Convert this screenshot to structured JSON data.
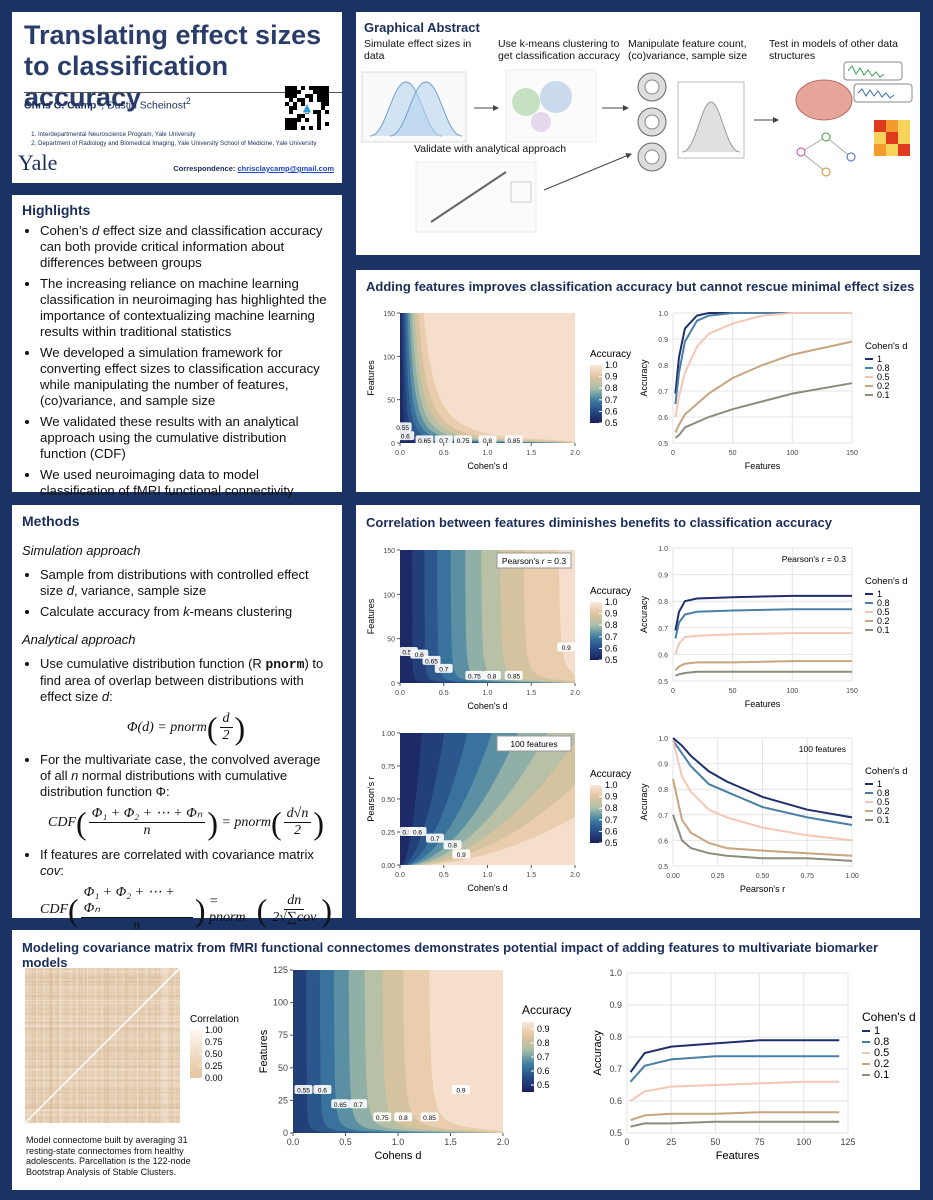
{
  "header": {
    "title": "Translating effect sizes to classification accuracy",
    "author1": "Chris C. Camp",
    "sup1": "1",
    "author2": ", Dustin Scheinost",
    "sup2": "2",
    "affiliations": [
      "Interdepartmental Neuroscience Program, Yale University",
      "Department of Radiology and Biomedical Imaging, Yale University School of Medicine, Yale University"
    ],
    "institution": "Yale",
    "correspondence_label": "Correspondence:",
    "email": "chrisclaycamp@gmail.com"
  },
  "highlights": {
    "title": "Highlights",
    "items": [
      [
        "Cohen’s ",
        "d",
        " effect size and classification accuracy can both provide critical information about differences between groups"
      ],
      [
        "The increasing reliance on machine learning classification in neuroimaging has highlighted the importance of contextualizing machine learning results within traditional statistics"
      ],
      [
        "We developed a simulation framework for converting effect sizes to classification accuracy while manipulating the number of features, (co)variance, and sample size"
      ],
      [
        "We validated these results with an analytical approach using the cumulative distribution function (CDF)"
      ],
      [
        "We used neuroimaging data to model classification of fMRI functional connectivity"
      ]
    ]
  },
  "methods": {
    "title": "Methods",
    "simulation_heading": "Simulation approach",
    "simulation_items": [
      [
        "Sample from distributions with controlled effect size ",
        "d",
        ", variance, sample size"
      ],
      [
        "Calculate accuracy from ",
        "k",
        "-means clustering"
      ]
    ],
    "analytical_heading": "Analytical approach",
    "analytical_items": [
      [
        "Use cumulative distribution function (R ",
        "pnorm",
        ") to find area of overlap between distributions with effect size ",
        "d",
        ":"
      ],
      [
        "For the multivariate case, the convolved average of all ",
        "n",
        " normal distributions with cumulative distribution function Φ:"
      ],
      [
        "If features are correlated with covariance matrix ",
        "cov",
        ":"
      ]
    ],
    "formula1": {
      "lhs": "Φ(d) = pnorm",
      "num": "d",
      "den": "2"
    },
    "formula2": {
      "lhs": "CDF",
      "num1": "Φ₁ + Φ₂ + ⋯ + Φₙ",
      "den1": "n",
      "mid": "= pnorm",
      "num2": "d√n",
      "den2": "2"
    },
    "formula3": {
      "lhs": "CDF",
      "num1": "Φ₁ + Φ₂ + ⋯ + Φₙ",
      "den1": "n",
      "mid": "= pnorm",
      "num2": "dn",
      "den2": "2√∑cov"
    }
  },
  "abstract": {
    "title": "Graphical Abstract",
    "step1": "Simulate effect sizes in data",
    "step2": "Use k-means clustering to get classification accuracy",
    "step3": "Manipulate feature count, (co)variance, sample size",
    "step4": "Test in models of other data structures",
    "step5": "Validate with analytical approach"
  },
  "panels": {
    "features_title": "Adding features improves classification accuracy but cannot rescue minimal effect sizes",
    "correlation_title": "Correlation between features diminishes benefits to classification accuracy",
    "fmri_title": "Modeling covariance matrix from fMRI functional connectomes demonstrates potential impact of adding features to multivariate biomarker models",
    "fmri_caption": "Model connectome built by averaging 31 resting-state connectomes from healthy adolescents.  Parcellation is the 122-node Bootstrap  Analysis of Stable Clusters."
  },
  "chart_data": [
    {
      "type": "contour",
      "xlabel": "Cohen's d",
      "ylabel": "Features",
      "xlim": [
        0,
        2
      ],
      "xticks": [
        {
          "value": 0,
          "label": "0.0"
        },
        0.5,
        {
          "value": 1,
          "label": "1.0"
        },
        1.5,
        {
          "value": 2,
          "label": "2.0"
        }
      ],
      "ylim": [
        0,
        150
      ],
      "yticks": [
        0,
        50,
        100,
        150
      ],
      "legend_title": "Accuracy",
      "clim": [
        0.5,
        1
      ],
      "colorbar_ticks": [
        0.5,
        0.6,
        0.7,
        0.8,
        0.9,
        {
          "value": 1,
          "label": "1.0"
        }
      ],
      "contour_labels": {
        "values": [
          0.55,
          0.6,
          0.65,
          0.7,
          0.75,
          0.8,
          0.85
        ],
        "x": [
          0.03,
          0.06,
          0.28,
          0.5,
          0.72,
          1.0,
          1.3
        ],
        "y": [
          18,
          8,
          3,
          3,
          3,
          3,
          3
        ]
      }
    },
    {
      "type": "line",
      "xlabel": "Features",
      "ylabel": "Accuracy",
      "xlim": [
        0,
        150
      ],
      "xticks": [
        0,
        50,
        100,
        150
      ],
      "ylim": [
        0.5,
        1
      ],
      "yticks": [
        0.5,
        0.6,
        0.7,
        0.8,
        0.9,
        {
          "value": 1,
          "label": "1.0"
        }
      ],
      "grid": true,
      "legend_title": "Cohen's d",
      "x": [
        2,
        5,
        10,
        20,
        30,
        50,
        75,
        100,
        150
      ],
      "series": [
        {
          "name": "1",
          "color": "#1f2f6b",
          "values": [
            0.69,
            0.83,
            0.94,
            0.99,
            1,
            1,
            1,
            1,
            1
          ]
        },
        {
          "name": "0.8",
          "color": "#4a7fa5",
          "values": [
            0.65,
            0.77,
            0.89,
            0.97,
            0.99,
            1,
            1,
            1,
            1
          ]
        },
        {
          "name": "0.5",
          "color": "#f3c6b5",
          "values": [
            0.6,
            0.68,
            0.77,
            0.87,
            0.92,
            0.96,
            0.99,
            1,
            1
          ]
        },
        {
          "name": "0.2",
          "color": "#c8a57f",
          "values": [
            0.54,
            0.57,
            0.61,
            0.65,
            0.69,
            0.75,
            0.8,
            0.84,
            0.89
          ]
        },
        {
          "name": "0.1",
          "color": "#8f8b7c",
          "values": [
            0.52,
            0.53,
            0.56,
            0.58,
            0.6,
            0.63,
            0.66,
            0.69,
            0.73
          ]
        }
      ]
    },
    {
      "type": "contour",
      "xlabel": "Cohen's d",
      "ylabel": "Features",
      "annotation": [
        "Pearson's ",
        "r",
        " = 0.3"
      ],
      "xlim": [
        0,
        2
      ],
      "xticks": [
        {
          "value": 0,
          "label": "0.0"
        },
        0.5,
        {
          "value": 1,
          "label": "1.0"
        },
        1.5,
        {
          "value": 2,
          "label": "2.0"
        }
      ],
      "ylim": [
        0,
        150
      ],
      "yticks": [
        0,
        50,
        100,
        150
      ],
      "legend_title": "Accuracy",
      "clim": [
        0.5,
        1
      ],
      "colorbar_ticks": [
        0.5,
        0.6,
        0.7,
        0.8,
        0.9,
        {
          "value": 1,
          "label": "1.0"
        }
      ],
      "contour_labels": {
        "values": [
          0.55,
          0.6,
          0.65,
          0.7,
          0.75,
          0.8,
          0.85,
          0.9
        ],
        "x": [
          0.1,
          0.22,
          0.36,
          0.5,
          0.85,
          1.05,
          1.3,
          1.9
        ],
        "y": [
          35,
          32,
          25,
          16,
          8,
          8,
          8,
          40
        ]
      }
    },
    {
      "type": "line",
      "xlabel": "Features",
      "ylabel": "Accuracy",
      "annotation": [
        "Pearson's ",
        "r",
        " = 0.3"
      ],
      "xlim": [
        0,
        150
      ],
      "xticks": [
        0,
        50,
        100,
        150
      ],
      "ylim": [
        0.5,
        1
      ],
      "yticks": [
        0.5,
        0.6,
        0.7,
        0.8,
        0.9,
        {
          "value": 1,
          "label": "1.0"
        }
      ],
      "grid": true,
      "legend_title": "Cohen's d",
      "x": [
        2,
        5,
        10,
        20,
        50,
        100,
        150
      ],
      "series": [
        {
          "name": "1",
          "color": "#1f2f6b",
          "values": [
            0.69,
            0.76,
            0.8,
            0.81,
            0.815,
            0.82,
            0.82
          ]
        },
        {
          "name": "0.8",
          "color": "#4a7fa5",
          "values": [
            0.66,
            0.72,
            0.75,
            0.76,
            0.765,
            0.77,
            0.77
          ]
        },
        {
          "name": "0.5",
          "color": "#f3c6b5",
          "values": [
            0.6,
            0.64,
            0.665,
            0.67,
            0.675,
            0.68,
            0.68
          ]
        },
        {
          "name": "0.2",
          "color": "#c8a57f",
          "values": [
            0.54,
            0.555,
            0.565,
            0.57,
            0.57,
            0.575,
            0.575
          ]
        },
        {
          "name": "0.1",
          "color": "#8f8b7c",
          "values": [
            0.52,
            0.525,
            0.53,
            0.535,
            0.535,
            0.535,
            0.535
          ]
        }
      ]
    },
    {
      "type": "contour",
      "xlabel": "Cohen's d",
      "ylabel": "Pearson's r",
      "features": 100,
      "annotation": [
        "100 features"
      ],
      "xlim": [
        0,
        2
      ],
      "xticks": [
        {
          "value": 0,
          "label": "0.0"
        },
        0.5,
        {
          "value": 1,
          "label": "1.0"
        },
        1.5,
        {
          "value": 2,
          "label": "2.0"
        }
      ],
      "ylim": [
        0,
        1
      ],
      "yticks": [
        {
          "value": 0,
          "label": "0.00"
        },
        0.25,
        {
          "value": 0.5,
          "label": "0.50"
        },
        0.75,
        {
          "value": 1,
          "label": "1.00"
        }
      ],
      "legend_title": "Accuracy",
      "clim": [
        0.5,
        1
      ],
      "colorbar_ticks": [
        0.5,
        0.6,
        0.7,
        0.8,
        0.9,
        {
          "value": 1,
          "label": "1.0"
        }
      ],
      "contour_labels": {
        "values": [
          0.55,
          0.6,
          0.7,
          0.8,
          0.9
        ],
        "x": [
          0.1,
          0.2,
          0.4,
          0.6,
          0.7
        ],
        "y": [
          0.25,
          0.25,
          0.2,
          0.15,
          0.08
        ]
      }
    },
    {
      "type": "line",
      "xlabel": "Pearson's r",
      "ylabel": "Accuracy",
      "annotation": [
        "100 features"
      ],
      "xlim": [
        0,
        1
      ],
      "xticks": [
        {
          "value": 0,
          "label": "0.00"
        },
        0.25,
        {
          "value": 0.5,
          "label": "0.50"
        },
        0.75,
        {
          "value": 1,
          "label": "1.00"
        }
      ],
      "ylim": [
        0.5,
        1
      ],
      "yticks": [
        0.5,
        0.6,
        0.7,
        0.8,
        0.9,
        {
          "value": 1,
          "label": "1.0"
        }
      ],
      "grid": true,
      "legend_title": "Cohen's d",
      "x": [
        0,
        0.05,
        0.1,
        0.2,
        0.3,
        0.5,
        0.75,
        1
      ],
      "series": [
        {
          "name": "1",
          "color": "#1f2f6b",
          "values": [
            1,
            0.97,
            0.93,
            0.87,
            0.83,
            0.77,
            0.72,
            0.69
          ]
        },
        {
          "name": "0.8",
          "color": "#4a7fa5",
          "values": [
            0.99,
            0.94,
            0.89,
            0.82,
            0.79,
            0.73,
            0.69,
            0.66
          ]
        },
        {
          "name": "0.5",
          "color": "#f3c6b5",
          "values": [
            0.99,
            0.85,
            0.79,
            0.72,
            0.69,
            0.65,
            0.62,
            0.6
          ]
        },
        {
          "name": "0.2",
          "color": "#c8a57f",
          "values": [
            0.84,
            0.68,
            0.63,
            0.59,
            0.57,
            0.56,
            0.55,
            0.54
          ]
        },
        {
          "name": "0.1",
          "color": "#8f8b7c",
          "values": [
            0.7,
            0.6,
            0.57,
            0.55,
            0.54,
            0.53,
            0.53,
            0.52
          ]
        }
      ]
    },
    {
      "type": "heatmap",
      "legend_title": "Correlation",
      "clim": [
        0,
        1
      ],
      "colorbar_ticks": [
        {
          "value": 1,
          "label": "1.00"
        },
        0.75,
        {
          "value": 0.5,
          "label": "0.50"
        },
        0.25,
        {
          "value": 0,
          "label": "0.00"
        }
      ]
    },
    {
      "type": "contour",
      "xlabel": "Cohens d",
      "ylabel": "Features",
      "xlim": [
        0,
        2
      ],
      "xticks": [
        {
          "value": 0,
          "label": "0.0"
        },
        0.5,
        {
          "value": 1,
          "label": "1.0"
        },
        1.5,
        {
          "value": 2,
          "label": "2.0"
        }
      ],
      "ylim": [
        0,
        125
      ],
      "yticks": [
        0,
        25,
        50,
        75,
        100,
        125
      ],
      "legend_title": "Accuracy",
      "clim": [
        0.45,
        0.95
      ],
      "colorbar_ticks": [
        0.5,
        0.6,
        0.7,
        0.8,
        0.9
      ],
      "contour_labels": {
        "values": [
          0.55,
          0.6,
          0.65,
          0.7,
          0.75,
          0.8,
          0.85,
          0.9
        ],
        "x": [
          0.1,
          0.28,
          0.45,
          0.62,
          0.85,
          1.05,
          1.3,
          1.6
        ],
        "y": [
          33,
          33,
          22,
          22,
          12,
          12,
          12,
          33
        ]
      }
    },
    {
      "type": "line",
      "xlabel": "Features",
      "ylabel": "Accuracy",
      "xlim": [
        0,
        125
      ],
      "xticks": [
        0,
        25,
        50,
        75,
        100,
        125
      ],
      "ylim": [
        0.5,
        1
      ],
      "yticks": [
        0.5,
        0.6,
        0.7,
        0.8,
        0.9,
        {
          "value": 1,
          "label": "1.0"
        }
      ],
      "grid": true,
      "legend_title": "Cohen's d",
      "x": [
        2,
        10,
        25,
        50,
        75,
        100,
        120
      ],
      "series": [
        {
          "name": "1",
          "color": "#1f2f6b",
          "values": [
            0.69,
            0.75,
            0.77,
            0.78,
            0.79,
            0.79,
            0.79
          ]
        },
        {
          "name": "0.8",
          "color": "#4a7fa5",
          "values": [
            0.66,
            0.71,
            0.73,
            0.74,
            0.74,
            0.74,
            0.74
          ]
        },
        {
          "name": "0.5",
          "color": "#f3c6b5",
          "values": [
            0.6,
            0.63,
            0.645,
            0.65,
            0.655,
            0.66,
            0.66
          ]
        },
        {
          "name": "0.2",
          "color": "#c8a57f",
          "values": [
            0.54,
            0.555,
            0.56,
            0.56,
            0.565,
            0.565,
            0.565
          ]
        },
        {
          "name": "0.1",
          "color": "#8f8b7c",
          "values": [
            0.52,
            0.53,
            0.53,
            0.535,
            0.535,
            0.535,
            0.535
          ]
        }
      ]
    }
  ]
}
